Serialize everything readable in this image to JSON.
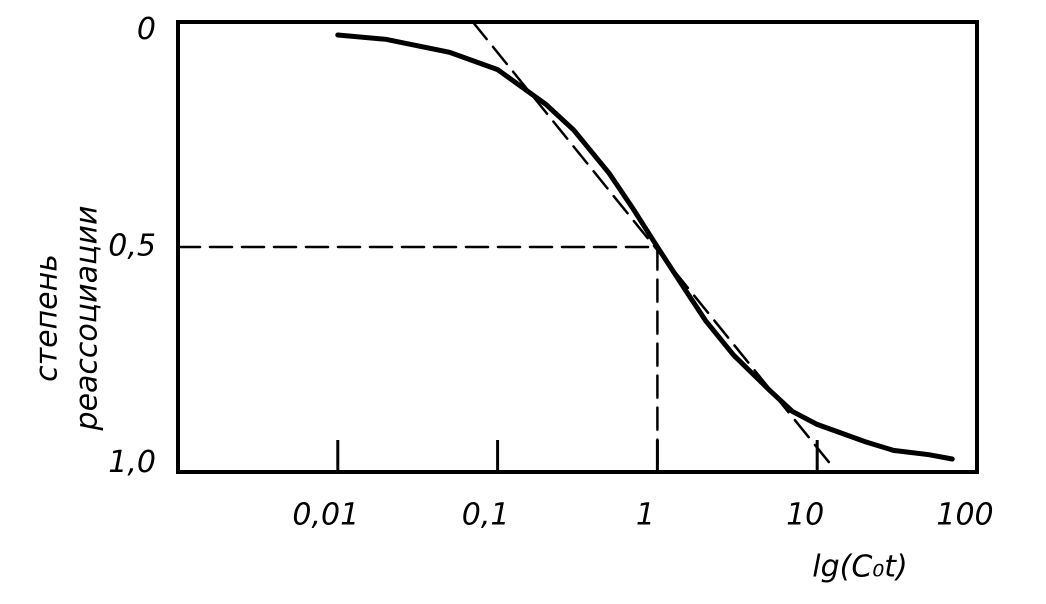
{
  "chart_data": {
    "type": "line",
    "xlabel": "lg(C₀t)",
    "ylabel": [
      "степень",
      "реассоциации"
    ],
    "xscale": "log",
    "xlim": [
      0.001,
      100
    ],
    "xticks": [
      {
        "value": 0.01,
        "label": "0,01"
      },
      {
        "value": 0.1,
        "label": "0,1"
      },
      1,
      10,
      100
    ],
    "ylim": [
      -0.02,
      1.02
    ],
    "y_inverted": true,
    "yticks": [
      0,
      {
        "value": 0.5,
        "label": "0,5"
      },
      {
        "value": 1,
        "label": "1,0"
      }
    ],
    "grid": false,
    "series": [
      {
        "color": "#000000",
        "style": "solid",
        "x": [
          0.01,
          0.02,
          0.05,
          0.1,
          0.2,
          0.3,
          0.5,
          0.7,
          1,
          1.5,
          2,
          3,
          5,
          7,
          10,
          20,
          30,
          50,
          70
        ],
        "values": [
          0.01,
          0.02,
          0.05,
          0.09,
          0.17,
          0.23,
          0.33,
          0.41,
          0.5,
          0.6,
          0.67,
          0.75,
          0.83,
          0.88,
          0.91,
          0.95,
          0.97,
          0.98,
          0.99
        ]
      },
      {
        "color": "#000000",
        "style": "dashed",
        "x": [
          0.07,
          12
        ],
        "values": [
          -0.02,
          1.0
        ]
      },
      {
        "color": "#000000",
        "style": "dashed",
        "x": [
          0.001,
          1,
          1
        ],
        "values": [
          0.5,
          0.5,
          1.02
        ]
      }
    ]
  }
}
